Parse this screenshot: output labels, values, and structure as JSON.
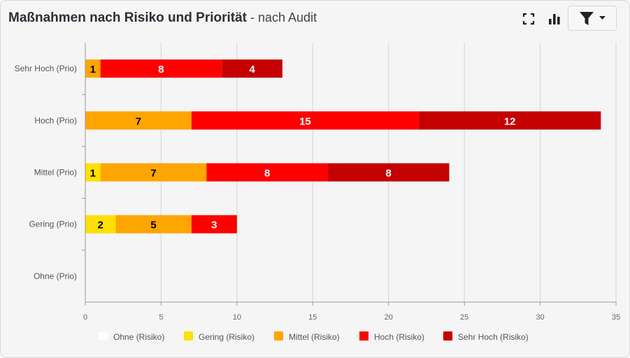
{
  "header": {
    "title": "Maßnahmen nach Risiko und Priorität",
    "subtitle": " - nach Audit"
  },
  "toolbar": {
    "fullscreen_icon": "fullscreen-icon",
    "chart_type_icon": "bar-chart-icon",
    "filter_icon": "filter-icon",
    "dropdown_icon": "caret-down-icon"
  },
  "chart_data": {
    "type": "bar",
    "orientation": "horizontal",
    "stacked": true,
    "categories": [
      "Sehr Hoch (Prio)",
      "Hoch (Prio)",
      "Mittel (Prio)",
      "Gering (Prio)",
      "Ohne (Prio)"
    ],
    "series": [
      {
        "name": "Ohne (Risiko)",
        "color": "#ffffff",
        "label_color": "#000000",
        "values": [
          0,
          0,
          0,
          0,
          0
        ]
      },
      {
        "name": "Gering (Risiko)",
        "color": "#ffe000",
        "label_color": "#000000",
        "values": [
          0,
          0,
          1,
          2,
          0
        ]
      },
      {
        "name": "Mittel (Risiko)",
        "color": "#ffa500",
        "label_color": "#000000",
        "values": [
          1,
          7,
          7,
          5,
          0
        ]
      },
      {
        "name": "Hoch (Risiko)",
        "color": "#ff0000",
        "label_color": "#ffffff",
        "values": [
          8,
          15,
          8,
          3,
          0
        ]
      },
      {
        "name": "Sehr Hoch (Risiko)",
        "color": "#c40000",
        "label_color": "#ffffff",
        "values": [
          4,
          12,
          8,
          0,
          0
        ]
      }
    ],
    "x_ticks": [
      0,
      5,
      10,
      15,
      20,
      25,
      30,
      35
    ],
    "xlim": [
      0,
      35
    ],
    "grid": true,
    "legend": "bottom"
  }
}
